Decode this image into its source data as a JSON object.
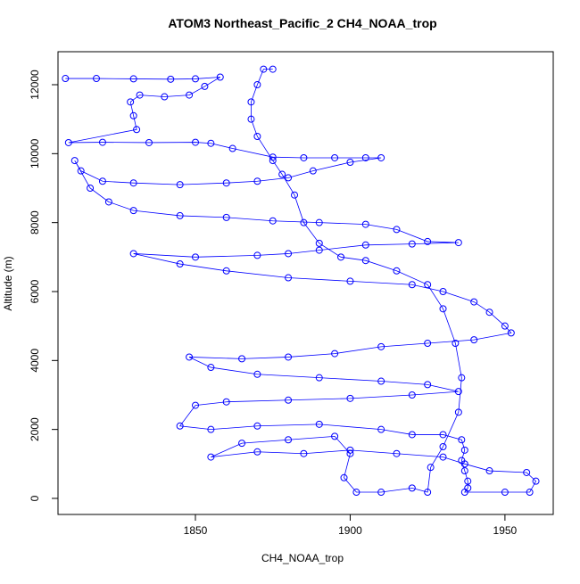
{
  "chart_data": {
    "type": "scatter",
    "title": "ATOM3 Northeast_Pacific_2 CH4_NOAA_trop",
    "x_label": "CH4_NOAA_trop",
    "y_label": "Altitude (m)",
    "xlim": [
      1805.6,
      1965.6
    ],
    "ylim": [
      -466,
      12957
    ],
    "xticks": [
      1850,
      1900,
      1950
    ],
    "yticks": [
      0,
      2000,
      4000,
      6000,
      8000,
      10000,
      12000
    ],
    "series": [
      {
        "color": "#0000ff",
        "x": [
          1808,
          1818,
          1830,
          1842,
          1850,
          1858,
          1853,
          1848,
          1840,
          1832,
          1829,
          1830,
          1831,
          1809,
          1820,
          1835,
          1850,
          1855,
          1862,
          1875,
          1885,
          1895,
          1905,
          1910,
          1900,
          1888,
          1880,
          1870,
          1860,
          1845,
          1830,
          1820,
          1813,
          1811,
          1816,
          1822,
          1830,
          1845,
          1860,
          1875,
          1890,
          1905,
          1915,
          1925,
          1935,
          1920,
          1905,
          1890,
          1880,
          1870,
          1850,
          1830,
          1845,
          1860,
          1880,
          1900,
          1920,
          1930,
          1940,
          1945,
          1950,
          1952,
          1940,
          1925,
          1910,
          1895,
          1880,
          1865,
          1848,
          1855,
          1870,
          1890,
          1910,
          1925,
          1935,
          1920,
          1900,
          1880,
          1860,
          1850,
          1845,
          1855,
          1870,
          1890,
          1910,
          1920,
          1930,
          1936,
          1937,
          1936,
          1937,
          1938,
          1938,
          1937,
          1950,
          1958,
          1960,
          1957,
          1945,
          1937,
          1930,
          1915,
          1900,
          1885,
          1870,
          1855,
          1865,
          1880,
          1895,
          1900,
          1898,
          1902,
          1910,
          1920,
          1925,
          1926,
          1930,
          1935,
          1936,
          1934,
          1930,
          1925,
          1915,
          1905,
          1897,
          1890,
          1885,
          1882,
          1878,
          1875,
          1870,
          1868,
          1868,
          1870,
          1872,
          1875
        ],
        "values": [
          12180,
          12180,
          12170,
          12160,
          12170,
          12220,
          11950,
          11700,
          11650,
          11700,
          11500,
          11100,
          10700,
          10320,
          10330,
          10320,
          10330,
          10300,
          10150,
          9900,
          9880,
          9880,
          9880,
          9880,
          9750,
          9500,
          9300,
          9200,
          9150,
          9100,
          9150,
          9200,
          9500,
          9800,
          9000,
          8600,
          8350,
          8200,
          8150,
          8050,
          8000,
          7950,
          7800,
          7450,
          7420,
          7380,
          7350,
          7200,
          7100,
          7050,
          7000,
          7100,
          6800,
          6600,
          6400,
          6300,
          6200,
          6000,
          5700,
          5400,
          5000,
          4800,
          4600,
          4500,
          4400,
          4200,
          4100,
          4050,
          4100,
          3800,
          3600,
          3500,
          3400,
          3300,
          3100,
          3000,
          2900,
          2850,
          2800,
          2700,
          2100,
          2000,
          2100,
          2150,
          2000,
          1850,
          1850,
          1700,
          1400,
          1100,
          800,
          500,
          300,
          180,
          180,
          180,
          500,
          750,
          800,
          1000,
          1200,
          1300,
          1400,
          1300,
          1350,
          1200,
          1600,
          1700,
          1800,
          1300,
          600,
          180,
          180,
          300,
          180,
          900,
          1500,
          2500,
          3500,
          4500,
          5500,
          6200,
          6600,
          6900,
          7000,
          7400,
          8000,
          8800,
          9400,
          9800,
          10500,
          11000,
          11500,
          12000,
          12450,
          12450
        ]
      }
    ]
  }
}
